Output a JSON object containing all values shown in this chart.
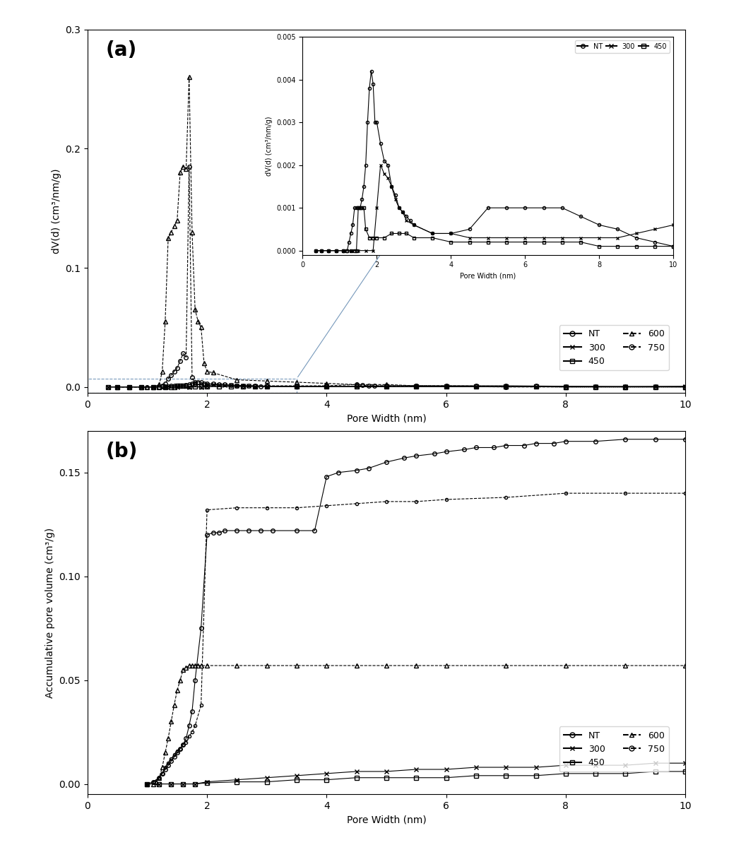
{
  "fig_width": 10.32,
  "fig_height": 11.96,
  "panel_a": {
    "xlabel": "Pore Width (nm)",
    "ylabel": "dV(d) (cm³/nm/g)",
    "xlim": [
      0,
      10
    ],
    "ylim": [
      -0.005,
      0.3
    ],
    "yticks": [
      0.0,
      0.1,
      0.2,
      0.3
    ],
    "series": {
      "NT": {
        "x": [
          0.35,
          0.5,
          0.7,
          0.9,
          1.1,
          1.2,
          1.25,
          1.3,
          1.35,
          1.4,
          1.45,
          1.5,
          1.55,
          1.6,
          1.65,
          1.7,
          1.75,
          1.8,
          1.85,
          1.9,
          1.95,
          2.0,
          2.1,
          2.2,
          2.3,
          2.4,
          2.5,
          2.6,
          2.7,
          2.8,
          2.9,
          3.0,
          3.5,
          4.0,
          4.5,
          5.0,
          5.5,
          6.0,
          6.5,
          7.0,
          7.5,
          8.0,
          8.5,
          9.0,
          9.5,
          10.0
        ],
        "y": [
          0.0,
          0.0,
          0.0,
          0.0,
          0.0,
          0.0,
          0.0002,
          0.0004,
          0.0006,
          0.001,
          0.001,
          0.001,
          0.001,
          0.0012,
          0.0015,
          0.002,
          0.003,
          0.0038,
          0.0042,
          0.0039,
          0.003,
          0.003,
          0.0025,
          0.0021,
          0.002,
          0.0015,
          0.0013,
          0.001,
          0.0009,
          0.0008,
          0.0007,
          0.0006,
          0.0004,
          0.0004,
          0.0005,
          0.001,
          0.001,
          0.001,
          0.001,
          0.001,
          0.0008,
          0.0006,
          0.0005,
          0.0003,
          0.0002,
          0.0001
        ],
        "marker": "o",
        "linestyle": "-"
      },
      "300": {
        "x": [
          0.35,
          0.5,
          0.7,
          0.9,
          1.1,
          1.3,
          1.5,
          1.7,
          1.9,
          2.0,
          2.1,
          2.2,
          2.3,
          2.4,
          2.5,
          2.6,
          2.7,
          2.8,
          3.0,
          3.5,
          4.0,
          4.5,
          5.0,
          5.5,
          6.0,
          6.5,
          7.0,
          7.5,
          8.0,
          8.5,
          9.0,
          9.5,
          10.0
        ],
        "y": [
          0.0,
          0.0,
          0.0,
          0.0,
          0.0,
          0.0,
          0.0,
          0.0,
          0.0,
          0.001,
          0.002,
          0.0018,
          0.0017,
          0.0015,
          0.0012,
          0.001,
          0.0009,
          0.0007,
          0.0006,
          0.0004,
          0.0004,
          0.0003,
          0.0003,
          0.0003,
          0.0003,
          0.0003,
          0.0003,
          0.0003,
          0.0003,
          0.0003,
          0.0004,
          0.0005,
          0.0006
        ],
        "marker": "x",
        "linestyle": "-"
      },
      "450": {
        "x": [
          0.35,
          0.5,
          0.7,
          0.9,
          1.1,
          1.2,
          1.3,
          1.4,
          1.45,
          1.5,
          1.55,
          1.6,
          1.65,
          1.7,
          1.8,
          1.9,
          2.0,
          2.2,
          2.4,
          2.6,
          2.8,
          3.0,
          3.5,
          4.0,
          4.5,
          5.0,
          5.5,
          6.0,
          6.5,
          7.0,
          7.5,
          8.0,
          8.5,
          9.0,
          9.5,
          10.0
        ],
        "y": [
          0.0,
          0.0,
          0.0,
          0.0,
          0.0,
          0.0,
          0.0,
          0.0,
          0.0,
          0.001,
          0.001,
          0.001,
          0.001,
          0.0005,
          0.0003,
          0.0003,
          0.0003,
          0.0003,
          0.0004,
          0.0004,
          0.0004,
          0.0003,
          0.0003,
          0.0002,
          0.0002,
          0.0002,
          0.0002,
          0.0002,
          0.0002,
          0.0002,
          0.0002,
          0.0001,
          0.0001,
          0.0001,
          0.0001,
          0.0001
        ],
        "marker": "s",
        "linestyle": "-"
      },
      "600": {
        "x": [
          0.5,
          0.7,
          0.9,
          1.0,
          1.1,
          1.2,
          1.25,
          1.3,
          1.35,
          1.4,
          1.45,
          1.5,
          1.55,
          1.6,
          1.65,
          1.7,
          1.75,
          1.8,
          1.85,
          1.9,
          1.95,
          2.0,
          2.1,
          2.5,
          3.0,
          3.5,
          4.0,
          4.5,
          5.0,
          5.5,
          6.0,
          7.0,
          8.0,
          9.0,
          10.0
        ],
        "y": [
          0.0,
          0.0,
          0.0,
          0.0,
          0.0,
          0.002,
          0.013,
          0.055,
          0.125,
          0.13,
          0.135,
          0.14,
          0.18,
          0.185,
          0.183,
          0.26,
          0.13,
          0.065,
          0.055,
          0.05,
          0.02,
          0.013,
          0.012,
          0.006,
          0.005,
          0.004,
          0.003,
          0.002,
          0.002,
          0.001,
          0.001,
          0.0005,
          0.0,
          0.0,
          0.0
        ],
        "marker": "^",
        "linestyle": "--"
      },
      "750": {
        "x": [
          0.5,
          0.7,
          0.9,
          1.0,
          1.1,
          1.2,
          1.25,
          1.3,
          1.35,
          1.4,
          1.45,
          1.5,
          1.55,
          1.6,
          1.65,
          1.7,
          1.75,
          1.8,
          1.9,
          2.0,
          2.5,
          3.0,
          3.5,
          4.0,
          4.5,
          4.6,
          4.7,
          4.8,
          5.0,
          5.5,
          6.0,
          7.0,
          8.0,
          9.0,
          10.0
        ],
        "y": [
          0.0,
          0.0,
          0.0,
          0.0,
          0.0,
          0.0,
          0.001,
          0.003,
          0.007,
          0.01,
          0.013,
          0.016,
          0.022,
          0.028,
          0.025,
          0.185,
          0.008,
          0.003,
          0.0015,
          0.001,
          0.001,
          0.001,
          0.001,
          0.001,
          0.002,
          0.0015,
          0.001,
          0.001,
          0.001,
          0.001,
          0.0005,
          0.0,
          0.0,
          0.0,
          0.0
        ],
        "marker": "o",
        "linestyle": "--"
      }
    }
  },
  "panel_b": {
    "xlabel": "Pore Width (nm)",
    "ylabel": "Accumulative pore volume (cm³/g)",
    "xlim": [
      0,
      10
    ],
    "ylim": [
      -0.005,
      0.17
    ],
    "yticks": [
      0.0,
      0.05,
      0.1,
      0.15
    ],
    "series": {
      "NT": {
        "x": [
          1.0,
          1.1,
          1.2,
          1.25,
          1.3,
          1.35,
          1.4,
          1.45,
          1.5,
          1.55,
          1.6,
          1.65,
          1.7,
          1.75,
          1.8,
          1.9,
          2.0,
          2.1,
          2.2,
          2.3,
          2.5,
          2.7,
          2.9,
          3.1,
          3.5,
          3.8,
          4.0,
          4.2,
          4.5,
          4.7,
          5.0,
          5.3,
          5.5,
          5.8,
          6.0,
          6.3,
          6.5,
          6.8,
          7.0,
          7.3,
          7.5,
          7.8,
          8.0,
          8.5,
          9.0,
          9.5,
          10.0
        ],
        "y": [
          0.0,
          0.001,
          0.003,
          0.005,
          0.007,
          0.009,
          0.011,
          0.013,
          0.015,
          0.017,
          0.019,
          0.022,
          0.028,
          0.035,
          0.05,
          0.075,
          0.12,
          0.121,
          0.121,
          0.122,
          0.122,
          0.122,
          0.122,
          0.122,
          0.122,
          0.122,
          0.148,
          0.15,
          0.151,
          0.152,
          0.155,
          0.157,
          0.158,
          0.159,
          0.16,
          0.161,
          0.162,
          0.162,
          0.163,
          0.163,
          0.164,
          0.164,
          0.165,
          0.165,
          0.166,
          0.166,
          0.166
        ],
        "marker": "o",
        "linestyle": "-",
        "markersize": 4
      },
      "300": {
        "x": [
          1.0,
          1.2,
          1.4,
          1.6,
          1.8,
          2.0,
          2.5,
          3.0,
          3.5,
          4.0,
          4.5,
          5.0,
          5.5,
          6.0,
          6.5,
          7.0,
          7.5,
          8.0,
          8.5,
          9.0,
          9.5,
          10.0
        ],
        "y": [
          0.0,
          0.0,
          0.0,
          0.0,
          0.0,
          0.001,
          0.002,
          0.003,
          0.004,
          0.005,
          0.006,
          0.006,
          0.007,
          0.007,
          0.008,
          0.008,
          0.008,
          0.009,
          0.009,
          0.009,
          0.01,
          0.01
        ],
        "marker": "x",
        "linestyle": "-",
        "markersize": 5
      },
      "450": {
        "x": [
          1.0,
          1.2,
          1.4,
          1.6,
          1.8,
          2.0,
          2.5,
          3.0,
          3.5,
          4.0,
          4.5,
          5.0,
          5.5,
          6.0,
          6.5,
          7.0,
          7.5,
          8.0,
          8.5,
          9.0,
          9.5,
          10.0
        ],
        "y": [
          0.0,
          0.0,
          0.0,
          0.0,
          0.0,
          0.0005,
          0.001,
          0.001,
          0.002,
          0.002,
          0.003,
          0.003,
          0.003,
          0.003,
          0.004,
          0.004,
          0.004,
          0.005,
          0.005,
          0.005,
          0.006,
          0.006
        ],
        "marker": "s",
        "linestyle": "-",
        "markersize": 4
      },
      "600": {
        "x": [
          1.0,
          1.1,
          1.15,
          1.2,
          1.25,
          1.3,
          1.35,
          1.4,
          1.45,
          1.5,
          1.55,
          1.6,
          1.65,
          1.7,
          1.75,
          1.8,
          1.85,
          1.9,
          2.0,
          2.5,
          3.0,
          3.5,
          4.0,
          4.5,
          5.0,
          5.5,
          6.0,
          7.0,
          8.0,
          9.0,
          10.0
        ],
        "y": [
          0.0,
          0.0,
          0.001,
          0.003,
          0.008,
          0.015,
          0.022,
          0.03,
          0.038,
          0.045,
          0.05,
          0.055,
          0.056,
          0.057,
          0.057,
          0.057,
          0.057,
          0.057,
          0.057,
          0.057,
          0.057,
          0.057,
          0.057,
          0.057,
          0.057,
          0.057,
          0.057,
          0.057,
          0.057,
          0.057,
          0.057
        ],
        "marker": "^",
        "linestyle": "--",
        "markersize": 4
      },
      "750": {
        "x": [
          1.0,
          1.1,
          1.2,
          1.25,
          1.3,
          1.35,
          1.4,
          1.45,
          1.5,
          1.55,
          1.6,
          1.65,
          1.7,
          1.75,
          1.8,
          1.9,
          2.0,
          2.5,
          3.0,
          3.5,
          4.0,
          4.5,
          5.0,
          5.5,
          6.0,
          7.0,
          8.0,
          9.0,
          10.0
        ],
        "y": [
          0.0,
          0.001,
          0.003,
          0.005,
          0.008,
          0.01,
          0.012,
          0.014,
          0.016,
          0.017,
          0.019,
          0.02,
          0.023,
          0.025,
          0.028,
          0.038,
          0.132,
          0.133,
          0.133,
          0.133,
          0.134,
          0.135,
          0.136,
          0.136,
          0.137,
          0.138,
          0.14,
          0.14,
          0.14
        ],
        "marker": "o",
        "linestyle": "--",
        "markersize": 3
      }
    }
  },
  "inset": {
    "xlim": [
      0,
      10
    ],
    "ylim": [
      -0.0001,
      0.005
    ],
    "yticks": [
      0.0,
      0.001,
      0.002,
      0.003,
      0.004,
      0.005
    ],
    "xlabel": "Pore Width (nm)",
    "ylabel": "dV(d) (cm³/nm/g)"
  },
  "legend_a_main": [
    {
      "label": "NT",
      "marker": "o",
      "ls": "-",
      "mfc": "none"
    },
    {
      "label": "300",
      "marker": "x",
      "ls": "-",
      "mfc": "none"
    },
    {
      "label": "450",
      "marker": "s",
      "ls": "-",
      "mfc": "none"
    },
    {
      "label": "600",
      "marker": "^",
      "ls": "--",
      "mfc": "none"
    },
    {
      "label": "750",
      "marker": "o",
      "ls": "--",
      "mfc": "none"
    }
  ]
}
